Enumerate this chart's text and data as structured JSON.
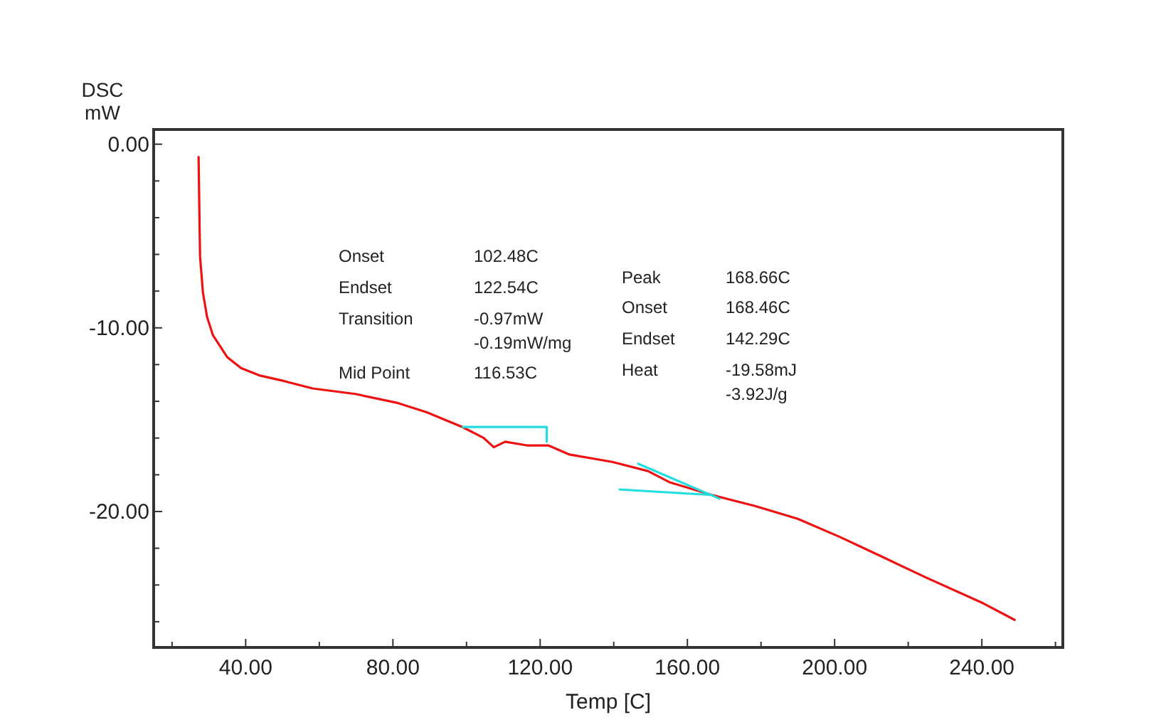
{
  "chart_data": {
    "type": "line",
    "xlabel": "Temp [C]",
    "ylabel": "DSC\nmW",
    "xlim": [
      15,
      262
    ],
    "ylim": [
      -27.4,
      0.8
    ],
    "xticks": [
      {
        "value": 20,
        "label": null
      },
      {
        "value": 40,
        "label": "40.00"
      },
      {
        "value": 60,
        "label": null
      },
      {
        "value": 80,
        "label": "80.00"
      },
      {
        "value": 100,
        "label": null
      },
      {
        "value": 120,
        "label": "120.00"
      },
      {
        "value": 140,
        "label": null
      },
      {
        "value": 160,
        "label": "160.00"
      },
      {
        "value": 180,
        "label": null
      },
      {
        "value": 200,
        "label": "200.00"
      },
      {
        "value": 220,
        "label": null
      },
      {
        "value": 240,
        "label": "240.00"
      },
      {
        "value": 260,
        "label": null
      }
    ],
    "yticks": [
      {
        "value": 0,
        "label": "0.00"
      },
      {
        "value": -2,
        "label": null
      },
      {
        "value": -4,
        "label": null
      },
      {
        "value": -6,
        "label": null
      },
      {
        "value": -8,
        "label": null
      },
      {
        "value": -10,
        "label": "-10.00"
      },
      {
        "value": -12,
        "label": null
      },
      {
        "value": -14,
        "label": null
      },
      {
        "value": -16,
        "label": null
      },
      {
        "value": -18,
        "label": null
      },
      {
        "value": -20,
        "label": "-20.00"
      },
      {
        "value": -22,
        "label": null
      },
      {
        "value": -24,
        "label": null
      },
      {
        "value": -26,
        "label": null
      }
    ],
    "grid": false,
    "marker": "none",
    "line_style": "solid",
    "series": [
      {
        "color": "#ee1111",
        "x": [
          27.2,
          27.6,
          28.4,
          29.5,
          31.1,
          35.0,
          38.8,
          43.9,
          50.5,
          58.2,
          69.8,
          81.5,
          89.2,
          98.9,
          104.7,
          107.4,
          110.5,
          116.4,
          122.2,
          128.0,
          139.6,
          149.3,
          155.1,
          166.7,
          178.4,
          190.0,
          201.6,
          213.3,
          224.9,
          240.4,
          248.9
        ],
        "values": [
          -0.7,
          -6.1,
          -8.1,
          -9.4,
          -10.4,
          -11.6,
          -12.2,
          -12.6,
          -12.9,
          -13.3,
          -13.6,
          -14.1,
          -14.6,
          -15.4,
          -16.0,
          -16.5,
          -16.2,
          -16.4,
          -16.4,
          -16.9,
          -17.3,
          -17.8,
          -18.4,
          -19.1,
          -19.7,
          -20.4,
          -21.4,
          -22.5,
          -23.6,
          -25.0,
          -25.9
        ]
      },
      {
        "color": "#22dddd",
        "x": [
          99.0,
          121.8,
          121.8
        ],
        "values": [
          -15.4,
          -15.4,
          -16.2
        ]
      },
      {
        "color": "#22dddd",
        "x": [
          146.6,
          168.7
        ],
        "values": [
          -17.4,
          -19.3
        ]
      },
      {
        "color": "#22dddd",
        "x": [
          141.6,
          166.7
        ],
        "values": [
          -18.8,
          -19.1
        ]
      }
    ],
    "annotations": [
      "Onset",
      "102.48C",
      "Endset",
      "122.54C",
      "Transition",
      "-0.97mW",
      "-0.19mW/mg",
      "Mid Point",
      "116.53C",
      "Peak",
      "168.66C",
      "Onset",
      "168.46C",
      "Endset",
      "142.29C",
      "Heat",
      "-19.58mJ",
      "-3.92J/g"
    ]
  }
}
